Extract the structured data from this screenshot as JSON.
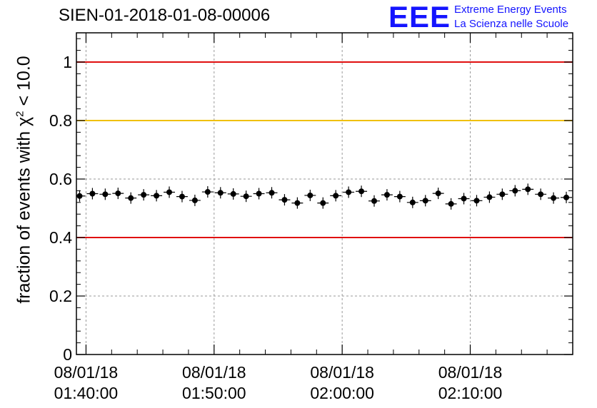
{
  "header": {
    "title": "SIEN-01-2018-01-08-00006"
  },
  "logo": {
    "mark": "EEE",
    "line1": "Extreme Energy Events",
    "line2": "La Scienza nelle Scuole"
  },
  "chart_data": {
    "type": "scatter",
    "title": "SIEN-01-2018-01-08-00006",
    "ylabel_main": "fraction of events with χ",
    "ylabel_sup": "2",
    "ylabel_tail": " < 10.0",
    "xlabel": "",
    "ylim": [
      0,
      1.1
    ],
    "xlim_minutes": [
      -1.5,
      76.0
    ],
    "grid": true,
    "yticks": [
      {
        "value": 0,
        "label": "0"
      },
      {
        "value": 0.2,
        "label": "0.2"
      },
      {
        "value": 0.4,
        "label": "0.4"
      },
      {
        "value": 0.6,
        "label": "0.6"
      },
      {
        "value": 0.8,
        "label": "0.8"
      },
      {
        "value": 1,
        "label": "1"
      }
    ],
    "xticks": [
      {
        "minute": 0,
        "date": "08/01/18",
        "time": "01:40:00"
      },
      {
        "minute": 20,
        "date": "08/01/18",
        "time": "01:50:00"
      },
      {
        "minute": 40,
        "date": "08/01/18",
        "time": "02:00:00"
      },
      {
        "minute": 60,
        "date": "08/01/18",
        "time": "02:10:00"
      }
    ],
    "reference_lines": [
      {
        "value": 1.0,
        "color": "#e01010"
      },
      {
        "value": 0.8,
        "color": "#f0c000"
      },
      {
        "value": 0.4,
        "color": "#e01010"
      }
    ],
    "bin_width_minutes": 2,
    "series": [
      {
        "name": "fraction",
        "color": "#000000",
        "x": [
          -1,
          1,
          3,
          5,
          7,
          9,
          11,
          13,
          15,
          17,
          19,
          21,
          23,
          25,
          27,
          29,
          31,
          33,
          35,
          37,
          39,
          41,
          43,
          45,
          47,
          49,
          51,
          53,
          55,
          57,
          59,
          61,
          63,
          65,
          67,
          69,
          71,
          73,
          75
        ],
        "y": [
          0.542,
          0.55,
          0.548,
          0.551,
          0.535,
          0.546,
          0.543,
          0.555,
          0.54,
          0.527,
          0.556,
          0.553,
          0.549,
          0.541,
          0.55,
          0.553,
          0.529,
          0.518,
          0.544,
          0.518,
          0.543,
          0.555,
          0.558,
          0.525,
          0.546,
          0.54,
          0.52,
          0.526,
          0.551,
          0.515,
          0.533,
          0.526,
          0.538,
          0.548,
          0.56,
          0.565,
          0.548,
          0.535,
          0.537
        ]
      }
    ]
  }
}
